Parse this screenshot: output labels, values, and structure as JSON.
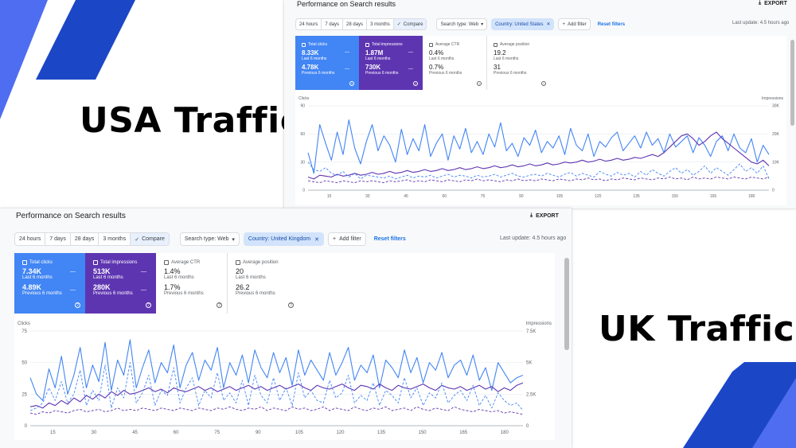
{
  "labels": {
    "usa": "USA Traffic",
    "uk": "UK Traffic"
  },
  "colors": {
    "clicks_blue": "#4285f4",
    "impressions_purple": "#5e35b1",
    "accent_blue": "#1a73e8"
  },
  "usa": {
    "title": "Performance on Search results",
    "export_label": "EXPORT",
    "date_ranges": [
      "24 hours",
      "7 days",
      "28 days",
      "3 months"
    ],
    "compare_label": "Compare",
    "search_type": "Search type: Web",
    "country_filter": "Country: United States",
    "add_filter": "Add filter",
    "reset_filters": "Reset filters",
    "last_update": "Last update: 4.5 hours ago",
    "metrics": [
      {
        "label": "Total clicks",
        "value": "8.33K",
        "period": "Last 6 months",
        "value2": "4.78K",
        "period2": "Previous 6 months"
      },
      {
        "label": "Total impressions",
        "value": "1.87M",
        "period": "Last 6 months",
        "value2": "730K",
        "period2": "Previous 6 months"
      },
      {
        "label": "Average CTR",
        "value": "0.4%",
        "period": "Last 6 months",
        "value2": "0.7%",
        "period2": "Previous 6 months"
      },
      {
        "label": "Average position",
        "value": "19.2",
        "period": "Last 6 months",
        "value2": "31",
        "period2": "Previous 6 months"
      }
    ],
    "chart_data": {
      "type": "line",
      "ylabel_left": "Clicks",
      "ylabel_right": "Impressions",
      "yticks_left": [
        "90",
        "60",
        "30",
        "0"
      ],
      "yticks_right": [
        "30K",
        "20K",
        "10K",
        "0"
      ],
      "ylim_left": [
        0,
        90
      ],
      "ylim_right": [
        0,
        30000
      ],
      "xticks": [
        "15",
        "30",
        "45",
        "60",
        "75",
        "90",
        "105",
        "120",
        "135",
        "150",
        "165",
        "180"
      ],
      "grid": true,
      "series": [
        {
          "values": [
            40,
            18,
            70,
            50,
            32,
            62,
            38,
            75,
            45,
            28,
            52,
            70,
            42,
            58,
            48,
            30,
            65,
            38,
            55,
            42,
            70,
            36,
            50,
            60,
            32,
            58,
            44,
            66,
            40,
            52,
            38,
            60,
            46,
            72,
            42,
            50,
            36,
            56,
            48,
            64,
            40,
            52,
            45,
            58,
            38,
            66,
            48,
            42,
            60,
            36,
            52,
            46,
            56,
            62,
            42,
            50,
            58,
            45,
            62,
            48,
            55,
            40,
            60,
            46,
            52,
            58,
            40,
            56,
            48,
            36,
            52,
            58,
            42,
            60,
            45,
            40,
            55,
            30,
            48,
            38
          ]
        },
        {
          "values": [
            14,
            12,
            16,
            15,
            14,
            17,
            15,
            16,
            18,
            16,
            17,
            19,
            17,
            18,
            20,
            18,
            19,
            21,
            19,
            20,
            22,
            20,
            21,
            23,
            21,
            22,
            24,
            22,
            23,
            25,
            23,
            24,
            26,
            24,
            25,
            27,
            25,
            26,
            28,
            26,
            27,
            29,
            27,
            28,
            30,
            29,
            30,
            32,
            30,
            31,
            33,
            31,
            32,
            34,
            32,
            33,
            35,
            34,
            36,
            38,
            36,
            40,
            46,
            52,
            58,
            60,
            55,
            48,
            52,
            58,
            62,
            55,
            50,
            45,
            40,
            35,
            30,
            28,
            32,
            26
          ]
        },
        {
          "values": [
            30,
            22,
            20,
            24,
            18,
            16,
            20,
            14,
            18,
            12,
            16,
            15,
            14,
            13,
            15,
            12,
            14,
            16,
            13,
            15,
            14,
            16,
            13,
            15,
            17,
            14,
            16,
            15,
            13,
            16,
            14,
            15,
            17,
            14,
            16,
            18,
            15,
            14,
            16,
            17,
            15,
            18,
            16,
            14,
            17,
            19,
            15,
            18,
            16,
            14,
            20,
            17,
            15,
            19,
            16,
            18,
            14,
            20,
            16,
            22,
            18,
            15,
            20,
            24,
            18,
            22,
            16,
            20,
            26,
            18,
            24,
            20,
            16,
            22,
            28,
            20,
            24,
            18,
            26,
            12
          ]
        },
        {
          "values": [
            10,
            9,
            8,
            10,
            9,
            8,
            10,
            9,
            8,
            10,
            9,
            10,
            9,
            8,
            10,
            9,
            10,
            11,
            9,
            10,
            9,
            11,
            10,
            9,
            11,
            10,
            9,
            11,
            10,
            12,
            10,
            11,
            10,
            9,
            11,
            10,
            12,
            10,
            11,
            10,
            12,
            11,
            10,
            12,
            11,
            10,
            12,
            11,
            13,
            11,
            12,
            10,
            12,
            11,
            13,
            12,
            11,
            13,
            12,
            11,
            13,
            12,
            14,
            12,
            13,
            11,
            14,
            12,
            13,
            12,
            14,
            13,
            12,
            14,
            13,
            12,
            14,
            13,
            12,
            14
          ]
        }
      ]
    }
  },
  "uk": {
    "title": "Performance on Search results",
    "export_label": "EXPORT",
    "date_ranges": [
      "24 hours",
      "7 days",
      "28 days",
      "3 months"
    ],
    "compare_label": "Compare",
    "search_type": "Search type: Web",
    "country_filter": "Country: United Kingdom",
    "add_filter": "Add filter",
    "reset_filters": "Reset filters",
    "last_update": "Last update: 4.5 hours ago",
    "metrics": [
      {
        "label": "Total clicks",
        "value": "7.34K",
        "period": "Last 6 months",
        "value2": "4.89K",
        "period2": "Previous 6 months"
      },
      {
        "label": "Total impressions",
        "value": "513K",
        "period": "Last 6 months",
        "value2": "280K",
        "period2": "Previous 6 months"
      },
      {
        "label": "Average CTR",
        "value": "1.4%",
        "period": "Last 6 months",
        "value2": "1.7%",
        "period2": "Previous 6 months"
      },
      {
        "label": "Average position",
        "value": "20",
        "period": "Last 6 months",
        "value2": "26.2",
        "period2": "Previous 6 months"
      }
    ],
    "chart_data": {
      "type": "line",
      "ylabel_left": "Clicks",
      "ylabel_right": "Impressions",
      "yticks_left": [
        "75",
        "50",
        "25",
        "0"
      ],
      "yticks_right": [
        "7.5K",
        "5K",
        "2.5K",
        "0"
      ],
      "ylim_left": [
        0,
        75
      ],
      "ylim_right": [
        0,
        7500
      ],
      "xticks": [
        "15",
        "30",
        "45",
        "60",
        "75",
        "90",
        "105",
        "120",
        "135",
        "150",
        "165",
        "180"
      ],
      "grid": true,
      "series": [
        {
          "values": [
            38,
            25,
            20,
            45,
            30,
            55,
            25,
            40,
            62,
            30,
            48,
            35,
            66,
            28,
            52,
            40,
            68,
            30,
            46,
            60,
            34,
            50,
            42,
            64,
            30,
            48,
            58,
            36,
            52,
            44,
            62,
            30,
            50,
            40,
            56,
            34,
            60,
            46,
            38,
            58,
            42,
            54,
            32,
            60,
            40,
            52,
            44,
            36,
            58,
            40,
            50,
            62,
            36,
            48,
            42,
            56,
            30,
            52,
            46,
            38,
            60,
            42,
            54,
            34,
            50,
            44,
            58,
            38,
            48,
            52,
            40,
            56,
            36,
            46,
            28,
            50,
            42,
            34,
            38,
            40
          ]
        },
        {
          "values": [
            15,
            16,
            14,
            18,
            16,
            20,
            17,
            22,
            19,
            24,
            21,
            25,
            22,
            27,
            24,
            28,
            25,
            26,
            28,
            30,
            27,
            29,
            26,
            30,
            28,
            27,
            29,
            31,
            28,
            30,
            27,
            29,
            31,
            28,
            30,
            32,
            29,
            31,
            28,
            30,
            32,
            29,
            31,
            33,
            30,
            28,
            32,
            30,
            29,
            31,
            33,
            30,
            28,
            32,
            31,
            29,
            33,
            30,
            28,
            32,
            30,
            29,
            31,
            33,
            30,
            28,
            32,
            30,
            29,
            31,
            28,
            30,
            32,
            29,
            31,
            27,
            30,
            28,
            32,
            34
          ]
        },
        {
          "values": [
            12,
            14,
            18,
            30,
            20,
            35,
            18,
            25,
            44,
            16,
            28,
            20,
            48,
            14,
            30,
            22,
            50,
            18,
            26,
            40,
            16,
            28,
            24,
            46,
            18,
            30,
            38,
            16,
            28,
            22,
            42,
            20,
            26,
            18,
            36,
            16,
            40,
            24,
            18,
            38,
            20,
            30,
            16,
            42,
            22,
            28,
            20,
            18,
            36,
            22,
            26,
            40,
            18,
            24,
            20,
            34,
            16,
            28,
            24,
            18,
            38,
            22,
            30,
            16,
            26,
            22,
            34,
            18,
            24,
            28,
            20,
            32,
            16,
            24,
            14,
            26,
            20,
            16,
            18,
            12
          ]
        },
        {
          "values": [
            10,
            9,
            11,
            10,
            12,
            11,
            10,
            12,
            13,
            11,
            12,
            13,
            11,
            12,
            14,
            12,
            13,
            12,
            14,
            13,
            12,
            14,
            13,
            12,
            14,
            13,
            12,
            14,
            13,
            12,
            14,
            13,
            15,
            13,
            12,
            14,
            13,
            15,
            12,
            14,
            13,
            12,
            15,
            13,
            14,
            12,
            13,
            15,
            12,
            14,
            13,
            12,
            15,
            13,
            12,
            14,
            13,
            15,
            12,
            13,
            14,
            12,
            15,
            13,
            12,
            14,
            13,
            12,
            15,
            13,
            12,
            11,
            13,
            12,
            11,
            12,
            10,
            11,
            10,
            9
          ]
        }
      ]
    }
  }
}
